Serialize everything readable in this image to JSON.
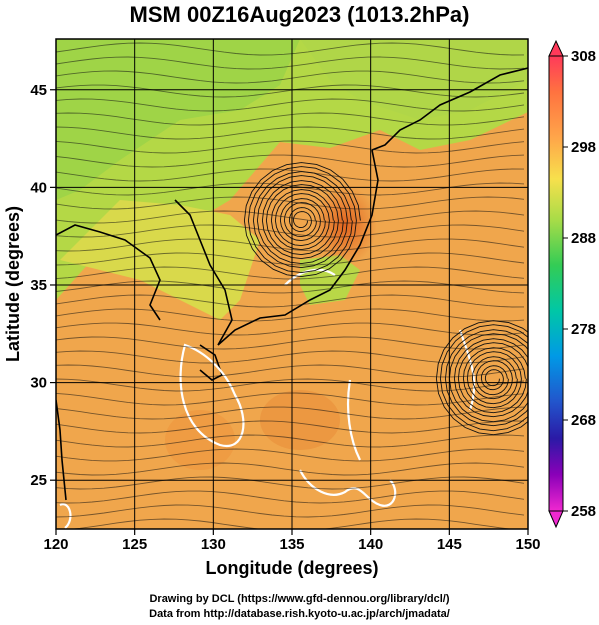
{
  "title": "MSM 00Z16Aug2023 (1013.2hPa)",
  "map": {
    "x_axis_label": "Longitude (degrees)",
    "y_axis_label": "Latitude  (degrees)",
    "lon_range": [
      120,
      150
    ],
    "lat_range": [
      22.5,
      47.6
    ],
    "lon_ticks": [
      "120",
      "125",
      "130",
      "135",
      "140",
      "145",
      "150"
    ],
    "lat_ticks": [
      "25",
      "30",
      "35",
      "40",
      "45"
    ],
    "grid": true,
    "field": "temperature (K) with streamlines",
    "cyclone_centers": [
      {
        "lon": 135.6,
        "lat": 38.3
      },
      {
        "lon": 147.8,
        "lat": 30.2
      }
    ]
  },
  "colorbar": {
    "range": [
      258,
      308
    ],
    "labels": [
      "308",
      "298",
      "288",
      "278",
      "268",
      "258"
    ],
    "colors": [
      "#ff3366",
      "#ff7f3f",
      "#ffb04a",
      "#d7e84c",
      "#88d84a",
      "#33cc55",
      "#00c7a6",
      "#00a0e0",
      "#2255cc",
      "#3322aa",
      "#7a00b8",
      "#e020d0"
    ]
  },
  "credits": [
    "Drawing by DCL (https://www.gfd-dennou.org/library/dcl/)",
    "Data from http://database.rish.kyoto-u.ac.jp/arch/jmadata/"
  ]
}
